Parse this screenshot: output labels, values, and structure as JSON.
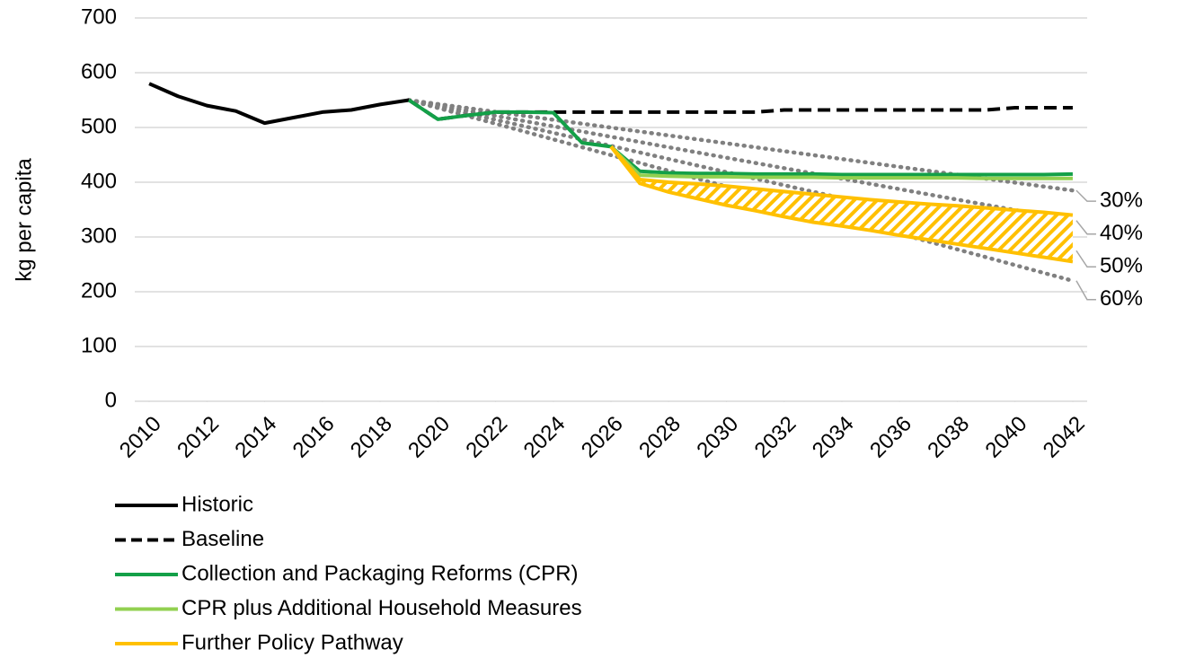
{
  "chart_data": {
    "type": "line",
    "y_label": "kg per capita",
    "xlim": [
      2009.5,
      2042.5
    ],
    "xticks": [
      2010,
      2012,
      2014,
      2016,
      2018,
      2020,
      2022,
      2024,
      2026,
      2028,
      2030,
      2032,
      2034,
      2036,
      2038,
      2040,
      2042
    ],
    "ylim": [
      0,
      700
    ],
    "yticks": [
      0,
      100,
      200,
      300,
      400,
      500,
      600,
      700
    ],
    "grid": true,
    "legend": "bottom-left",
    "series": [
      {
        "name": "Historic",
        "color": "#000000",
        "style": "solid",
        "legend": true,
        "x": [
          2010,
          2011,
          2012,
          2013,
          2014,
          2015,
          2016,
          2017,
          2018,
          2019
        ],
        "values": [
          580,
          557,
          540,
          530,
          508,
          518,
          528,
          532,
          542,
          550
        ]
      },
      {
        "name": "Baseline",
        "color": "#000000",
        "style": "dashed",
        "legend": true,
        "x": [
          2019,
          2020,
          2021,
          2022,
          2023,
          2024,
          2025,
          2026,
          2027,
          2028,
          2029,
          2030,
          2031,
          2032,
          2033,
          2034,
          2035,
          2036,
          2037,
          2038,
          2039,
          2040,
          2041,
          2042
        ],
        "values": [
          550,
          515,
          522,
          528,
          528,
          528,
          528,
          528,
          528,
          528,
          528,
          528,
          528,
          532,
          532,
          532,
          532,
          532,
          532,
          532,
          532,
          536,
          536,
          536
        ]
      },
      {
        "name": "30%",
        "color": "#808080",
        "style": "dotted",
        "legend": false,
        "x": [
          2019,
          2042
        ],
        "values": [
          550,
          385
        ]
      },
      {
        "name": "40%",
        "color": "#808080",
        "style": "dotted",
        "legend": false,
        "x": [
          2019,
          2042
        ],
        "values": [
          550,
          330
        ]
      },
      {
        "name": "50%",
        "color": "#808080",
        "style": "dotted",
        "legend": false,
        "x": [
          2019,
          2042
        ],
        "values": [
          550,
          275
        ]
      },
      {
        "name": "60%",
        "color": "#808080",
        "style": "dotted",
        "legend": false,
        "x": [
          2019,
          2042
        ],
        "values": [
          550,
          220
        ]
      },
      {
        "name": "Collection and Packaging Reforms (CPR)",
        "color": "#13a048",
        "style": "solid",
        "legend": true,
        "x": [
          2019,
          2020,
          2021,
          2022,
          2023,
          2024,
          2025,
          2026,
          2027,
          2028,
          2029,
          2030,
          2031,
          2032,
          2033,
          2034,
          2035,
          2036,
          2037,
          2038,
          2039,
          2040,
          2041,
          2042
        ],
        "values": [
          550,
          515,
          522,
          528,
          528,
          527,
          472,
          465,
          420,
          417,
          416,
          416,
          415,
          415,
          415,
          414,
          414,
          414,
          414,
          414,
          414,
          414,
          414,
          415
        ]
      },
      {
        "name": "CPR plus Additional Household Measures",
        "color": "#92d050",
        "style": "solid",
        "legend": true,
        "x": [
          2026,
          2027,
          2028,
          2029,
          2030,
          2031,
          2032,
          2033,
          2034,
          2035,
          2036,
          2037,
          2038,
          2039,
          2040,
          2041,
          2042
        ],
        "values": [
          465,
          413,
          411,
          410,
          410,
          409,
          409,
          409,
          408,
          408,
          408,
          408,
          408,
          407,
          407,
          407,
          407
        ]
      },
      {
        "name": "Further Policy Pathway",
        "color": "#ffc000",
        "style": "band",
        "legend": true,
        "x": [
          2026,
          2027,
          2028,
          2029,
          2030,
          2031,
          2032,
          2033,
          2034,
          2035,
          2036,
          2037,
          2038,
          2039,
          2040,
          2041,
          2042
        ],
        "values": [
          465,
          405,
          400,
          397,
          393,
          388,
          383,
          378,
          373,
          368,
          364,
          360,
          357,
          353,
          349,
          345,
          340
        ],
        "values_low": [
          465,
          398,
          382,
          370,
          358,
          348,
          337,
          327,
          320,
          312,
          303,
          295,
          287,
          279,
          271,
          263,
          255
        ]
      }
    ]
  }
}
